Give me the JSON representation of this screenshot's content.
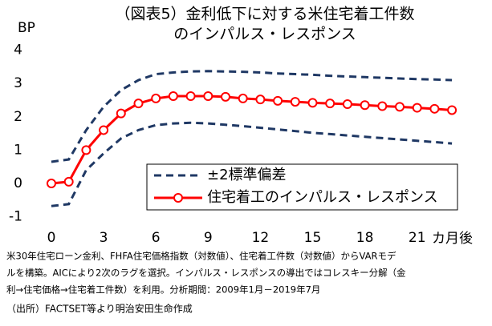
{
  "chart_data": {
    "type": "line",
    "title": [
      "（図表5）金利低下に対する米住宅着工件数",
      "のインパルス・レスポンス"
    ],
    "y_label": "BP",
    "x_unit": "カ月後",
    "x": [
      0,
      1,
      2,
      3,
      4,
      5,
      6,
      7,
      8,
      9,
      10,
      11,
      12,
      13,
      14,
      15,
      16,
      17,
      18,
      19,
      20,
      21,
      22,
      23
    ],
    "xlim": [
      0,
      23
    ],
    "xticks": [
      0,
      3,
      6,
      9,
      12,
      15,
      18,
      21
    ],
    "ylim": [
      -1,
      4
    ],
    "yticks": [
      -1,
      0,
      1,
      2,
      3,
      4
    ],
    "grid": false,
    "series": [
      {
        "name": "±2標準偏差",
        "color": "#1f3864",
        "dashed": true,
        "values": [
          0.65,
          0.72,
          1.6,
          2.3,
          2.8,
          3.1,
          3.28,
          3.33,
          3.36,
          3.37,
          3.36,
          3.35,
          3.33,
          3.3,
          3.28,
          3.26,
          3.23,
          3.21,
          3.19,
          3.17,
          3.15,
          3.13,
          3.12,
          3.1
        ]
      },
      {
        "color": "#1f3864",
        "dashed": true,
        "values": [
          -0.68,
          -0.62,
          0.4,
          0.9,
          1.35,
          1.6,
          1.75,
          1.8,
          1.82,
          1.8,
          1.76,
          1.72,
          1.67,
          1.62,
          1.57,
          1.52,
          1.48,
          1.44,
          1.4,
          1.36,
          1.32,
          1.28,
          1.24,
          1.2
        ]
      },
      {
        "name": "住宅着工のインパルス・レスポンス",
        "color": "#ff0000",
        "markers": true,
        "values": [
          0,
          0.05,
          1.0,
          1.6,
          2.1,
          2.4,
          2.55,
          2.62,
          2.62,
          2.62,
          2.6,
          2.55,
          2.52,
          2.48,
          2.45,
          2.42,
          2.4,
          2.38,
          2.35,
          2.32,
          2.3,
          2.27,
          2.24,
          2.2
        ]
      }
    ],
    "notes": [
      "米30年住宅ローン金利、FHFA住宅価格指数（対数値）、住宅着工件数（対数値）からVARモデ",
      "ルを構築。AICにより2次のラグを選択。インパルス・レスポンスの導出ではコレスキー分解（金",
      "利→住宅価格→住宅着工件数）を利用。分析期間：2009年1月－2019年7月"
    ],
    "source": "（出所）FACTSET等より明治安田生命作成"
  }
}
